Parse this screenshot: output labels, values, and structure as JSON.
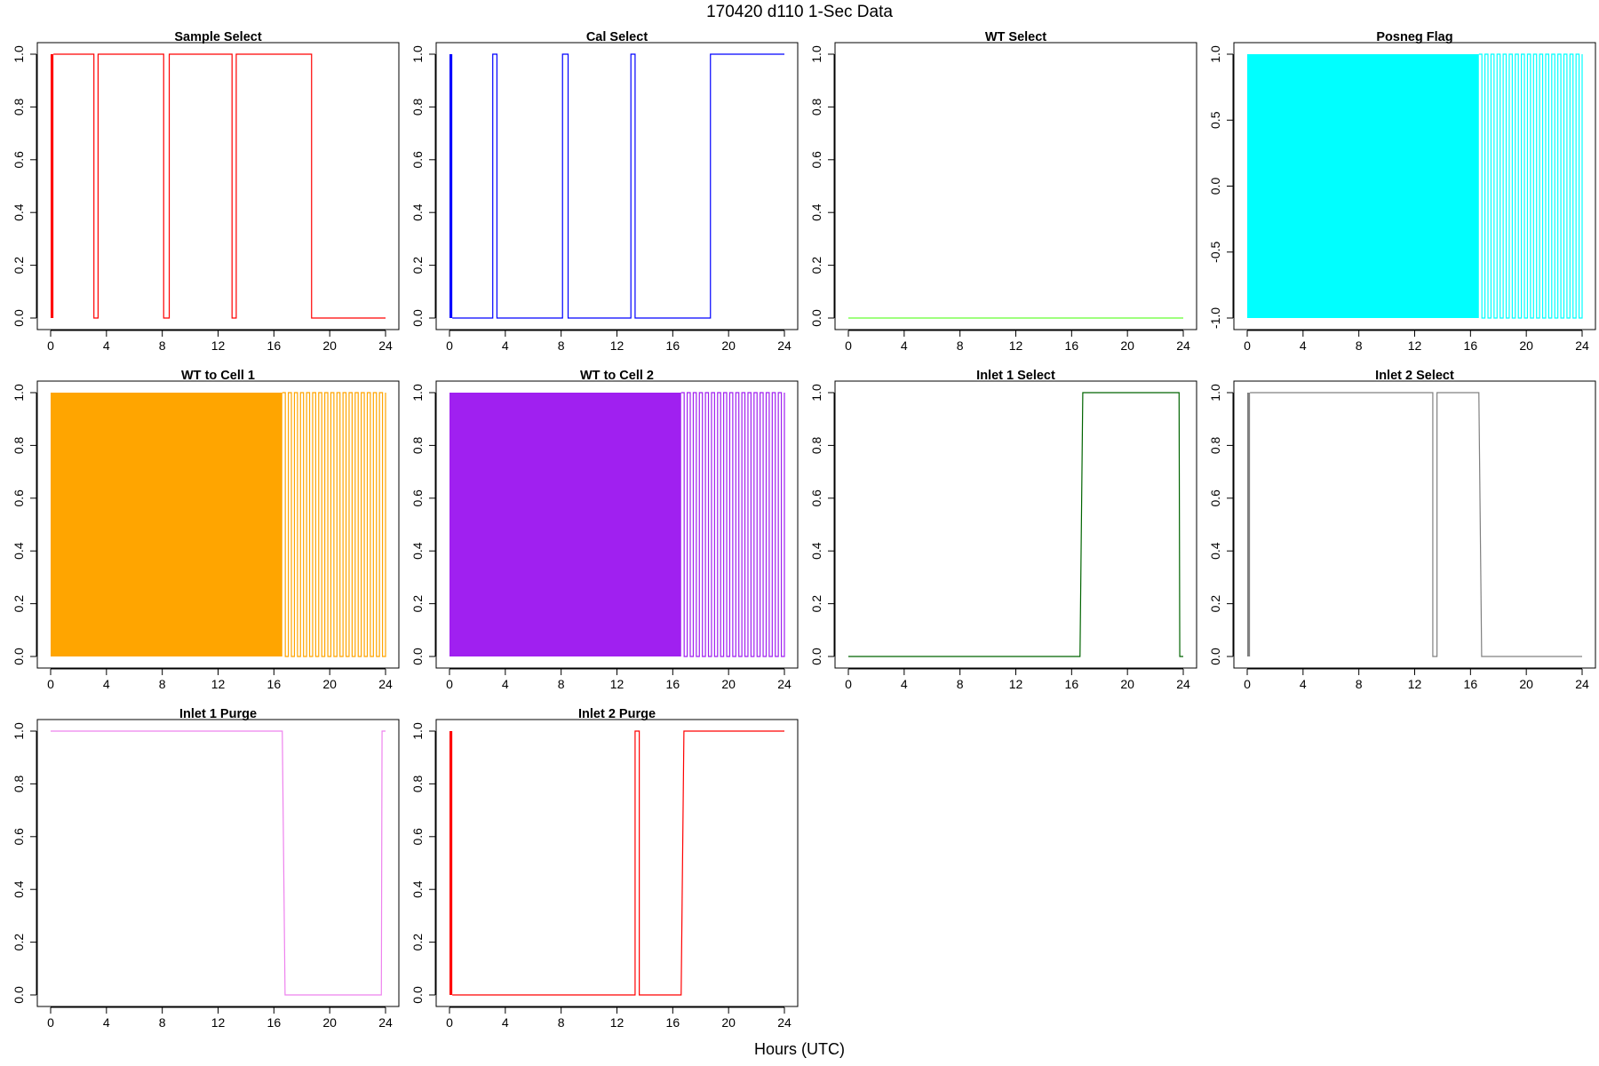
{
  "figure": {
    "title": "170420   d110   1-Sec Data",
    "xlabel": "Hours (UTC)"
  },
  "chart_data": [
    {
      "type": "line",
      "title": "Sample Select",
      "color": "#ff0000",
      "xlim": [
        0,
        24
      ],
      "ylim": [
        0,
        1
      ],
      "xticks": [
        "0",
        "4",
        "8",
        "12",
        "16",
        "20",
        "24"
      ],
      "yticks": [
        "0.0",
        "0.2",
        "0.4",
        "0.6",
        "0.8",
        "1.0"
      ],
      "dense_bands": [
        [
          0.0,
          0.2
        ]
      ],
      "x": [
        0.2,
        3.1,
        3.1,
        3.4,
        3.4,
        8.1,
        8.1,
        8.5,
        8.5,
        13.0,
        13.0,
        13.3,
        13.3,
        18.7,
        18.7,
        24.0
      ],
      "y": [
        1,
        1,
        0,
        0,
        1,
        1,
        0,
        0,
        1,
        1,
        0,
        0,
        1,
        1,
        0,
        0
      ]
    },
    {
      "type": "line",
      "title": "Cal Select",
      "color": "#0000ff",
      "xlim": [
        0,
        24
      ],
      "ylim": [
        0,
        1
      ],
      "xticks": [
        "0",
        "4",
        "8",
        "12",
        "16",
        "20",
        "24"
      ],
      "yticks": [
        "0.0",
        "0.2",
        "0.4",
        "0.6",
        "0.8",
        "1.0"
      ],
      "dense_bands": [
        [
          0.0,
          0.2
        ]
      ],
      "x": [
        0.2,
        3.1,
        3.1,
        3.4,
        3.4,
        8.1,
        8.1,
        8.5,
        8.5,
        13.0,
        13.0,
        13.3,
        13.3,
        18.7,
        18.7,
        24.0
      ],
      "y": [
        0,
        0,
        1,
        1,
        0,
        0,
        1,
        1,
        0,
        0,
        1,
        1,
        0,
        0,
        1,
        1
      ]
    },
    {
      "type": "line",
      "title": "WT Select",
      "color": "#66ff33",
      "xlim": [
        0,
        24
      ],
      "ylim": [
        0,
        1
      ],
      "xticks": [
        "0",
        "4",
        "8",
        "12",
        "16",
        "20",
        "24"
      ],
      "yticks": [
        "0.0",
        "0.2",
        "0.4",
        "0.6",
        "0.8",
        "1.0"
      ],
      "dense_bands": [],
      "x": [
        0,
        24
      ],
      "y": [
        0,
        0
      ]
    },
    {
      "type": "line",
      "title": "Posneg Flag",
      "color": "#00ffff",
      "xlim": [
        0,
        24
      ],
      "ylim": [
        -1,
        1
      ],
      "xticks": [
        "0",
        "4",
        "8",
        "12",
        "16",
        "20",
        "24"
      ],
      "yticks": [
        "-1.0",
        "-0.5",
        "0.0",
        "0.5",
        "1.0"
      ],
      "dense_bands": [
        [
          0.0,
          16.6
        ]
      ],
      "square_wave": {
        "start": 16.6,
        "end": 24.0,
        "cycles": 17,
        "low": -1,
        "high": 1
      }
    },
    {
      "type": "line",
      "title": "WT to Cell 1",
      "color": "#ffa500",
      "xlim": [
        0,
        24
      ],
      "ylim": [
        0,
        1
      ],
      "xticks": [
        "0",
        "4",
        "8",
        "12",
        "16",
        "20",
        "24"
      ],
      "yticks": [
        "0.0",
        "0.2",
        "0.4",
        "0.6",
        "0.8",
        "1.0"
      ],
      "dense_bands": [
        [
          0.0,
          16.6
        ]
      ],
      "square_wave": {
        "start": 16.6,
        "end": 24.0,
        "cycles": 17,
        "low": 0,
        "high": 1
      }
    },
    {
      "type": "line",
      "title": "WT to Cell 2",
      "color": "#a020f0",
      "xlim": [
        0,
        24
      ],
      "ylim": [
        0,
        1
      ],
      "xticks": [
        "0",
        "4",
        "8",
        "12",
        "16",
        "20",
        "24"
      ],
      "yticks": [
        "0.0",
        "0.2",
        "0.4",
        "0.6",
        "0.8",
        "1.0"
      ],
      "dense_bands": [
        [
          0.0,
          16.6
        ]
      ],
      "square_wave": {
        "start": 16.6,
        "end": 24.0,
        "cycles": 17,
        "low": 0,
        "high": 1
      }
    },
    {
      "type": "line",
      "title": "Inlet 1 Select",
      "color": "#006400",
      "xlim": [
        0,
        24
      ],
      "ylim": [
        0,
        1
      ],
      "xticks": [
        "0",
        "4",
        "8",
        "12",
        "16",
        "20",
        "24"
      ],
      "yticks": [
        "0.0",
        "0.2",
        "0.4",
        "0.6",
        "0.8",
        "1.0"
      ],
      "dense_bands": [],
      "x": [
        0,
        16.6,
        16.8,
        23.7,
        23.75,
        24.0
      ],
      "y": [
        0,
        0,
        1,
        1,
        0,
        0
      ]
    },
    {
      "type": "line",
      "title": "Inlet 2 Select",
      "color": "#808080",
      "xlim": [
        0,
        24
      ],
      "ylim": [
        0,
        1
      ],
      "xticks": [
        "0",
        "4",
        "8",
        "12",
        "16",
        "20",
        "24"
      ],
      "yticks": [
        "0.0",
        "0.2",
        "0.4",
        "0.6",
        "0.8",
        "1.0"
      ],
      "dense_bands": [
        [
          0.0,
          0.2
        ]
      ],
      "x": [
        0.2,
        13.3,
        13.3,
        13.6,
        13.6,
        16.6,
        16.8,
        24.0
      ],
      "y": [
        1,
        1,
        0,
        0,
        1,
        1,
        0,
        0
      ]
    },
    {
      "type": "line",
      "title": "Inlet 1 Purge",
      "color": "#ee82ee",
      "xlim": [
        0,
        24
      ],
      "ylim": [
        0,
        1
      ],
      "xticks": [
        "0",
        "4",
        "8",
        "12",
        "16",
        "20",
        "24"
      ],
      "yticks": [
        "0.0",
        "0.2",
        "0.4",
        "0.6",
        "0.8",
        "1.0"
      ],
      "dense_bands": [],
      "x": [
        0,
        16.6,
        16.8,
        23.7,
        23.75,
        24.0
      ],
      "y": [
        1,
        1,
        0,
        0,
        1,
        1
      ]
    },
    {
      "type": "line",
      "title": "Inlet 2 Purge",
      "color": "#ff0000",
      "xlim": [
        0,
        24
      ],
      "ylim": [
        0,
        1
      ],
      "xticks": [
        "0",
        "4",
        "8",
        "12",
        "16",
        "20",
        "24"
      ],
      "yticks": [
        "0.0",
        "0.2",
        "0.4",
        "0.6",
        "0.8",
        "1.0"
      ],
      "dense_bands": [
        [
          0.0,
          0.2
        ]
      ],
      "x": [
        0.2,
        13.3,
        13.3,
        13.6,
        13.6,
        16.6,
        16.8,
        24.0
      ],
      "y": [
        0,
        0,
        1,
        1,
        0,
        0,
        1,
        1
      ]
    }
  ]
}
